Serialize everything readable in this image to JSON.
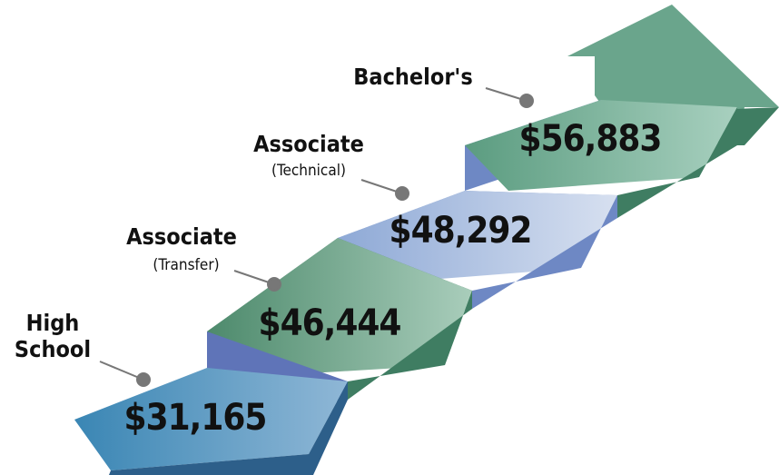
{
  "steps": [
    {
      "label": [
        "High",
        "School"
      ],
      "value": "$31,165"
    },
    {
      "label": [
        "Associate",
        "(Transfer)"
      ],
      "value": "$46,444"
    },
    {
      "label": [
        "Associate",
        "(Technical)"
      ],
      "value": "$48,292"
    },
    {
      "label": [
        "Bachelor's"
      ],
      "value": "$56,883"
    }
  ]
}
